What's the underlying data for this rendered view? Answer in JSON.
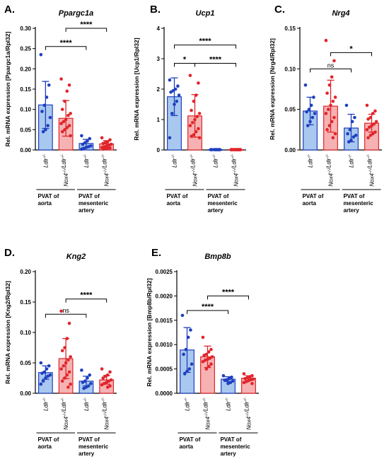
{
  "chart_data": [
    {
      "type": "bar",
      "panel_label": "A.",
      "title": "Ppargc1a",
      "ylabel": "Rel. mRNA expression [Ppargc1a/Rpl32]",
      "ylim": [
        0,
        0.3
      ],
      "yticks": [
        "0.00",
        "0.05",
        "0.10",
        "0.15",
        "0.20",
        "0.25",
        "0.30"
      ],
      "categories": [
        "Ldlr-/-",
        "Nox4-/-/Ldlr-/-",
        "Ldlr-/-",
        "Nox4-/-/Ldlr-/-"
      ],
      "groups": [
        "PVAT of aorta",
        "PVAT of mesenteric artery"
      ],
      "series": [
        {
          "name": "",
          "color": "#1f3fbf",
          "fill": "#a9c8ef",
          "values": [
            0.111,
            0.078,
            0.016,
            0.015
          ],
          "sd": [
            0.058,
            0.044,
            0.01,
            0.008
          ],
          "points": [
            [
              0.235,
              0.16,
              0.13,
              0.11,
              0.095,
              0.08,
              0.06,
              0.05,
              0.045
            ],
            [
              0.175,
              0.16,
              0.145,
              0.12,
              0.1,
              0.09,
              0.085,
              0.075,
              0.07,
              0.065,
              0.06,
              0.055,
              0.05,
              0.045,
              0.035
            ],
            [
              0.035,
              0.028,
              0.022,
              0.018,
              0.014,
              0.01,
              0.008,
              0.006,
              0.004,
              0.002
            ],
            [
              0.03,
              0.025,
              0.02,
              0.018,
              0.016,
              0.014,
              0.012,
              0.01,
              0.008,
              0.006,
              0.005,
              0.004,
              0.003,
              0.002
            ]
          ]
        }
      ],
      "comparisons": [
        {
          "from": 0,
          "to": 2,
          "y": 0.255,
          "label": "****"
        },
        {
          "from": 1,
          "to": 3,
          "y": 0.3,
          "label": "****"
        }
      ]
    },
    {
      "type": "bar",
      "panel_label": "B.",
      "title": "Ucp1",
      "ylabel": "Rel. mRNA expression [Ucp1/Rpl32]",
      "ylim": [
        0,
        4
      ],
      "yticks": [
        "0",
        "1",
        "2",
        "3",
        "4"
      ],
      "categories": [
        "Ldlr-/-",
        "Nox4-/-/Ldlr-/-",
        "Ldlr-/-",
        "Nox4-/-/Ldlr-/-"
      ],
      "groups": [
        "PVAT of aorta",
        "PVAT of mesenteric artery"
      ],
      "series": [
        {
          "name": "",
          "values": [
            1.75,
            1.12,
            0.01,
            0.01
          ],
          "sd": [
            0.62,
            0.7,
            0.01,
            0.01
          ],
          "points": [
            [
              2.3,
              2.1,
              2.0,
              1.95,
              1.9,
              1.8,
              1.6,
              1.5,
              1.2,
              0.4
            ],
            [
              2.45,
              2.2,
              1.8,
              1.6,
              1.3,
              1.2,
              1.1,
              1.0,
              0.9,
              0.8,
              0.7,
              0.6,
              0.5,
              0.45,
              0.4
            ],
            [
              0.01,
              0.01,
              0.01,
              0.01,
              0.01,
              0.01,
              0.01,
              0.01
            ],
            [
              0.01,
              0.01,
              0.01,
              0.01,
              0.01,
              0.01,
              0.01,
              0.01,
              0.01,
              0.01,
              0.01,
              0.01
            ]
          ]
        }
      ],
      "comparisons": [
        {
          "from": 0,
          "to": 1,
          "y": 2.85,
          "label": "*"
        },
        {
          "from": 1,
          "to": 3,
          "y": 2.85,
          "label": "****"
        },
        {
          "from": 0,
          "to": 3,
          "y": 3.45,
          "label": "****"
        }
      ]
    },
    {
      "type": "bar",
      "panel_label": "C.",
      "title": "Nrg4",
      "ylabel": "Rel. mRNA expression [Nrg4/Rpl32]",
      "ylim": [
        0,
        0.15
      ],
      "yticks": [
        "0.00",
        "0.05",
        "0.10",
        "0.15"
      ],
      "categories": [
        "Ldlr-/-",
        "Nox4-/-/Ldlr-/-",
        "Ldlr-/-",
        "Nox4-/-/Ldlr-/-"
      ],
      "groups": [
        "PVAT of aorta",
        "PVAT of mesenteric artery"
      ],
      "series": [
        {
          "name": "",
          "values": [
            0.048,
            0.054,
            0.027,
            0.033
          ],
          "sd": [
            0.017,
            0.032,
            0.017,
            0.011
          ],
          "points": [
            [
              0.08,
              0.065,
              0.055,
              0.05,
              0.047,
              0.045,
              0.04,
              0.035,
              0.03
            ],
            [
              0.135,
              0.11,
              0.09,
              0.08,
              0.07,
              0.065,
              0.06,
              0.055,
              0.05,
              0.045,
              0.04,
              0.035,
              0.03,
              0.025,
              0.02,
              0.015
            ],
            [
              0.055,
              0.04,
              0.035,
              0.025,
              0.02,
              0.018,
              0.016,
              0.012,
              0.01
            ],
            [
              0.055,
              0.048,
              0.045,
              0.04,
              0.038,
              0.035,
              0.032,
              0.03,
              0.028,
              0.025,
              0.022,
              0.02,
              0.018,
              0.015
            ]
          ]
        }
      ],
      "comparisons": [
        {
          "from": 0,
          "to": 2,
          "y": 0.1,
          "label": "ns"
        },
        {
          "from": 1,
          "to": 3,
          "y": 0.12,
          "label": "*"
        }
      ]
    },
    {
      "type": "bar",
      "panel_label": "D.",
      "title": "Kng2",
      "ylabel": "Rel. mRNA expression [Kng2/Rpl32]",
      "ylim": [
        0,
        0.2
      ],
      "yticks": [
        "0.00",
        "0.05",
        "0.10",
        "0.15",
        "0.20"
      ],
      "categories": [
        "Ldlr-/-",
        "Nox4-/-/Ldlr-/-",
        "Ldlr-/-",
        "Nox4-/-/Ldlr-/-"
      ],
      "groups": [
        "PVAT of aorta",
        "PVAT of mesenteric artery"
      ],
      "series": [
        {
          "name": "",
          "values": [
            0.034,
            0.057,
            0.02,
            0.022
          ],
          "sd": [
            0.011,
            0.033,
            0.008,
            0.007
          ],
          "points": [
            [
              0.05,
              0.045,
              0.04,
              0.035,
              0.033,
              0.03,
              0.028,
              0.025,
              0.02,
              0.015
            ],
            [
              0.135,
              0.115,
              0.09,
              0.075,
              0.07,
              0.06,
              0.055,
              0.05,
              0.045,
              0.04,
              0.035,
              0.03,
              0.025,
              0.02,
              0.015,
              0.01
            ],
            [
              0.038,
              0.03,
              0.025,
              0.02,
              0.018,
              0.016,
              0.012,
              0.01,
              0.008
            ],
            [
              0.04,
              0.035,
              0.03,
              0.028,
              0.025,
              0.022,
              0.02,
              0.018,
              0.016,
              0.014,
              0.012,
              0.01
            ]
          ]
        }
      ],
      "comparisons": [
        {
          "from": 0,
          "to": 2,
          "y": 0.13,
          "label": "ns"
        },
        {
          "from": 1,
          "to": 3,
          "y": 0.155,
          "label": "****"
        }
      ]
    },
    {
      "type": "bar",
      "panel_label": "E.",
      "title": "Bmp8b",
      "ylabel": "Rel. mRNA expression [Bmp8b/Rpl32]",
      "ylim": [
        0,
        0.0025
      ],
      "yticks": [
        "0.0000",
        "0.0005",
        "0.0010",
        "0.0015",
        "0.0020",
        "0.0025"
      ],
      "categories": [
        "Ldlr-/-",
        "Nox4-/-/Ldlr-/-",
        "Ldlr-/-",
        "Nox4-/-/Ldlr-/-"
      ],
      "groups": [
        "PVAT of aorta",
        "PVAT of mesenteric artery"
      ],
      "series": [
        {
          "name": "",
          "values": [
            0.00089,
            0.00075,
            0.00029,
            0.00031
          ],
          "sd": [
            0.00046,
            0.00022,
            5e-05,
            5e-05
          ],
          "points": [
            [
              0.0016,
              0.0013,
              0.00115,
              0.0009,
              0.0008,
              0.0006,
              0.0005,
              0.00045,
              0.0004
            ],
            [
              0.00115,
              0.0009,
              0.00085,
              0.0008,
              0.00078,
              0.00075,
              0.00072,
              0.0007,
              0.00068,
              0.00065,
              0.0006,
              0.00055,
              0.0005
            ],
            [
              0.00036,
              0.00033,
              0.0003,
              0.00028,
              0.00027,
              0.00025,
              0.00022,
              0.0002
            ],
            [
              0.0004,
              0.00036,
              0.00034,
              0.00032,
              0.0003,
              0.00029,
              0.00028,
              0.00026,
              0.00024,
              0.00022,
              0.0002
            ]
          ]
        }
      ],
      "comparisons": [
        {
          "from": 0,
          "to": 2,
          "y": 0.0017,
          "label": "****"
        },
        {
          "from": 1,
          "to": 3,
          "y": 0.002,
          "label": "****"
        }
      ]
    }
  ],
  "colors": {
    "ldlr_line": "#1f3fbf",
    "ldlr_fill": "#a9c8ef",
    "nox4_line": "#e0252b",
    "nox4_fill": "#f6b2b2"
  }
}
